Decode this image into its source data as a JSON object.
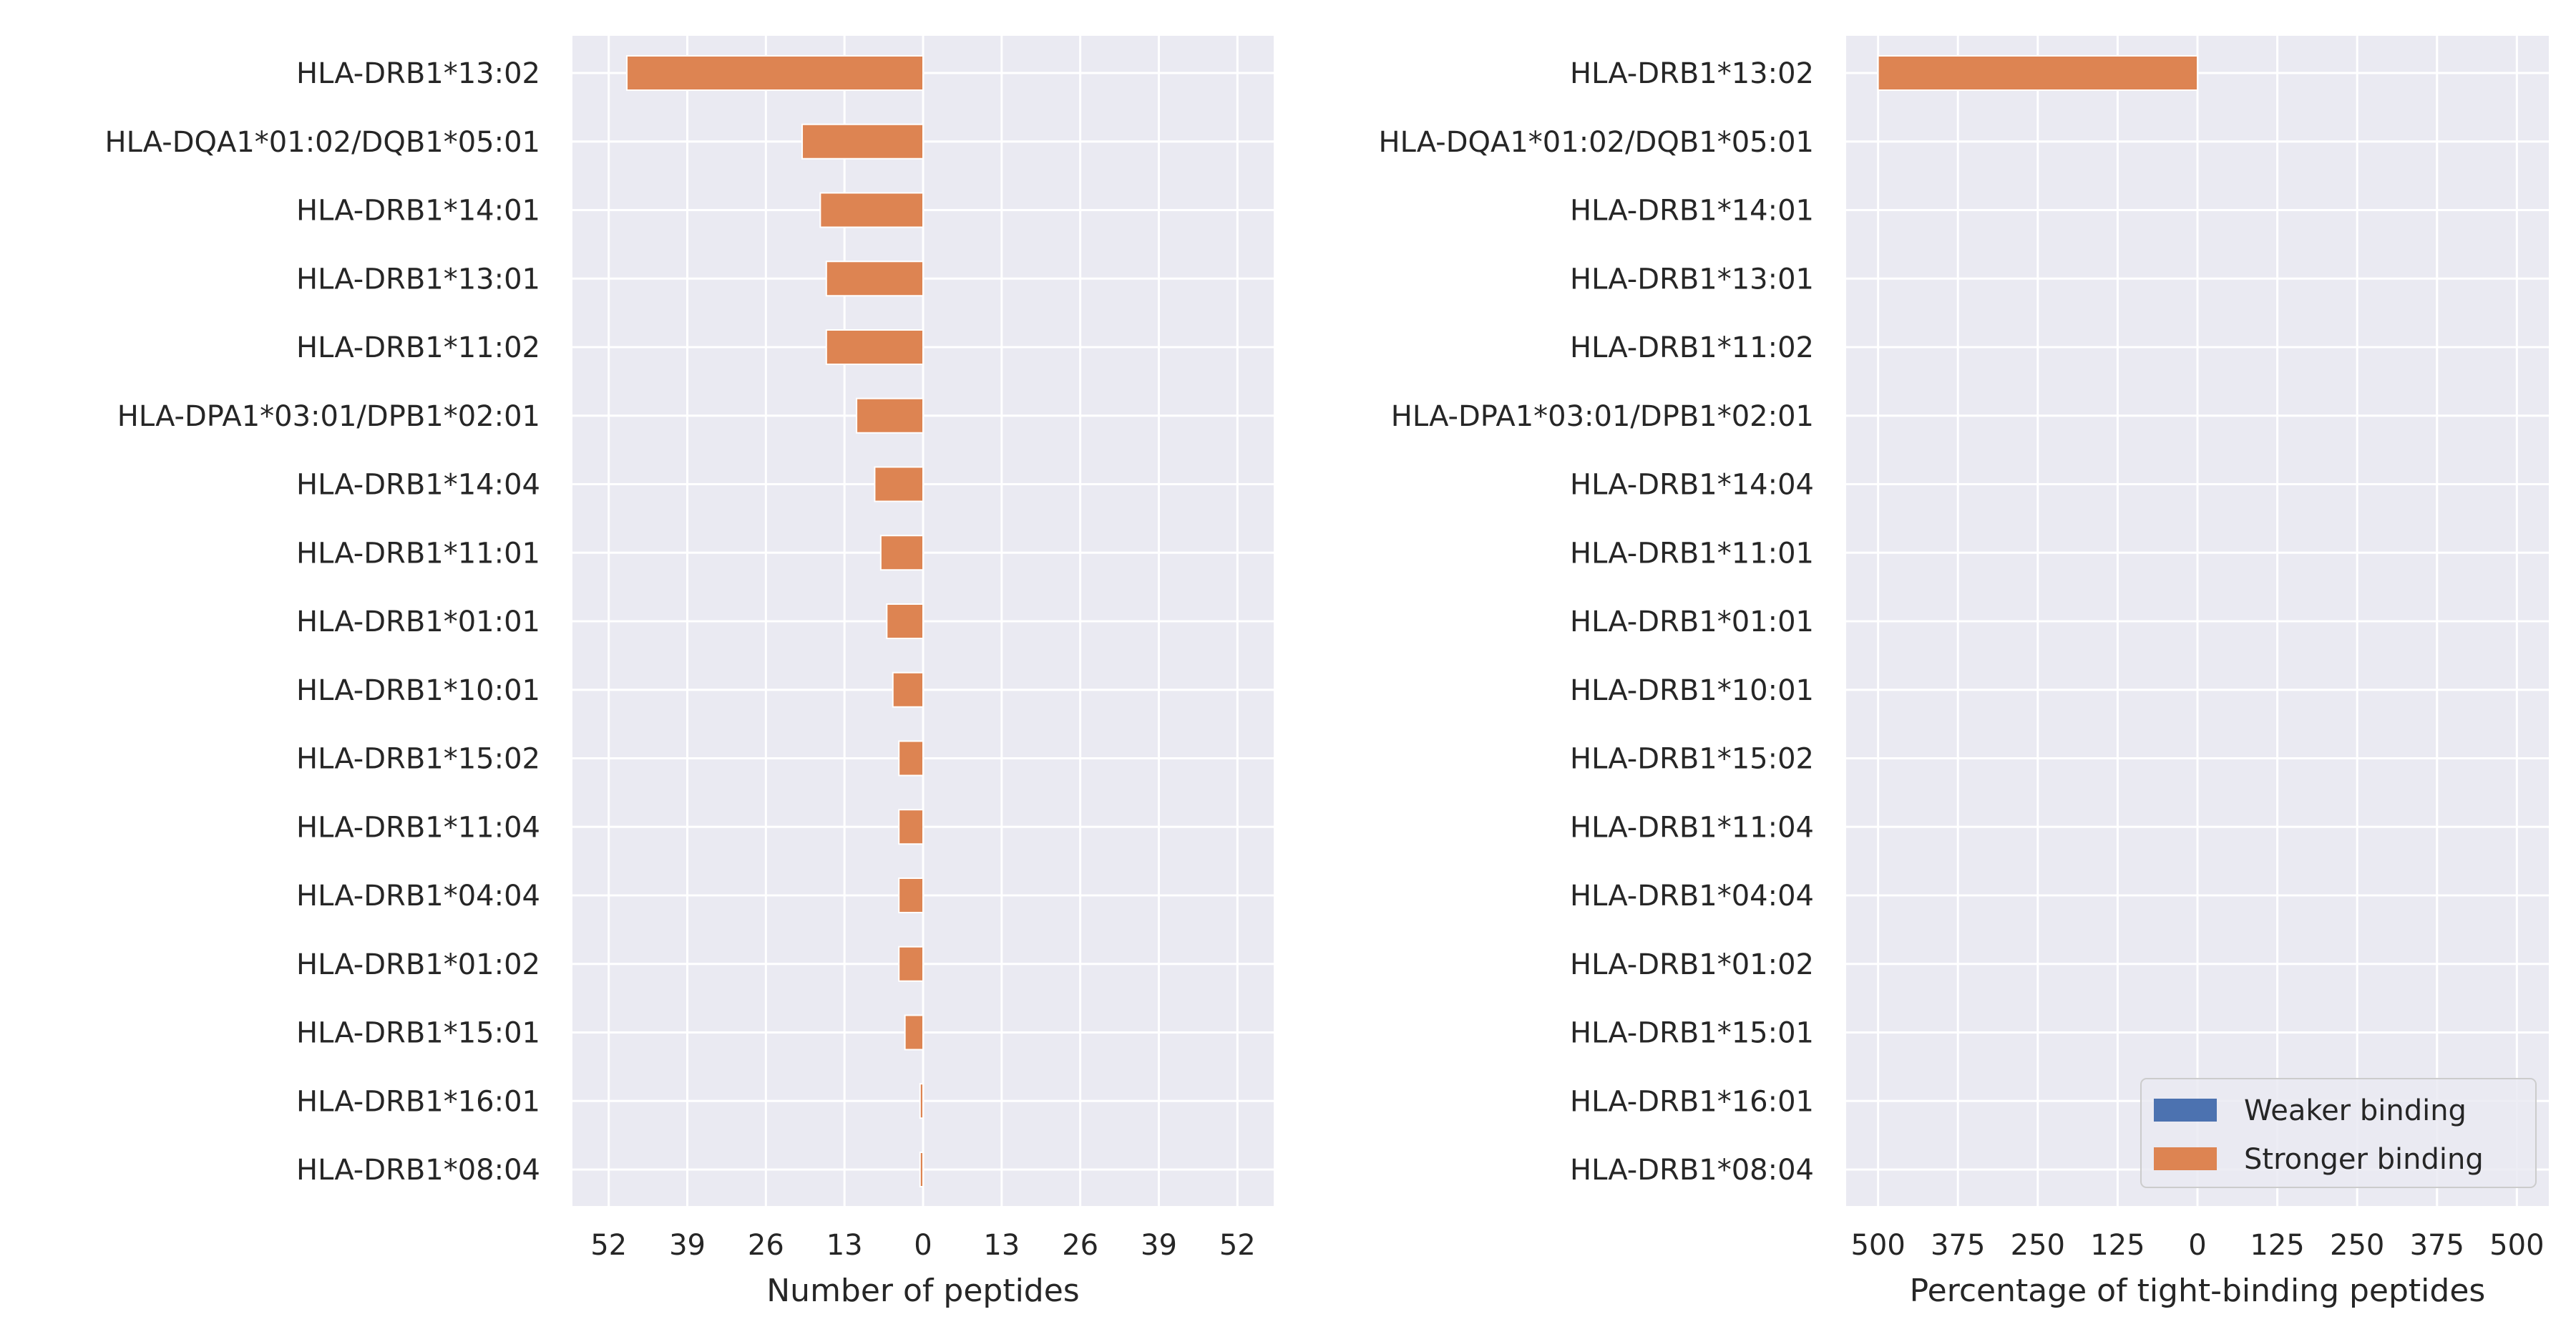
{
  "colors": {
    "panel_bg": "#EAEAF2",
    "grid": "#FFFFFF",
    "weaker": "#4C72B0",
    "stronger": "#DD8452",
    "text": "#262626"
  },
  "chart_data": [
    {
      "type": "bar",
      "orientation": "horizontal",
      "xlabel": "Number of peptides",
      "xlim": [
        -58,
        58
      ],
      "xticks": [
        -52,
        -39,
        -26,
        -13,
        0,
        13,
        26,
        39,
        52
      ],
      "xtick_labels": [
        "52",
        "39",
        "26",
        "13",
        "0",
        "13",
        "26",
        "39",
        "52"
      ],
      "grid": true,
      "categories": [
        "HLA-DRB1*13:02",
        "HLA-DQA1*01:02/DQB1*05:01",
        "HLA-DRB1*14:01",
        "HLA-DRB1*13:01",
        "HLA-DRB1*11:02",
        "HLA-DPA1*03:01/DPB1*02:01",
        "HLA-DRB1*14:04",
        "HLA-DRB1*11:01",
        "HLA-DRB1*01:01",
        "HLA-DRB1*10:01",
        "HLA-DRB1*15:02",
        "HLA-DRB1*11:04",
        "HLA-DRB1*04:04",
        "HLA-DRB1*01:02",
        "HLA-DRB1*15:01",
        "HLA-DRB1*16:01",
        "HLA-DRB1*08:04"
      ],
      "series": [
        {
          "name": "Weaker binding",
          "color": "#4C72B0",
          "values": [
            0,
            0,
            0,
            0,
            0,
            0,
            0,
            0,
            0,
            0,
            0,
            0,
            0,
            0,
            0,
            0,
            0
          ]
        },
        {
          "name": "Stronger binding",
          "color": "#DD8452",
          "values": [
            -49,
            -20,
            -17,
            -16,
            -16,
            -11,
            -8,
            -7,
            -6,
            -5,
            -4,
            -4,
            -4,
            -4,
            -3,
            -0.5,
            -0.5
          ]
        }
      ]
    },
    {
      "type": "bar",
      "orientation": "horizontal",
      "xlabel": "Percentage of tight-binding peptides",
      "xlim": [
        -550,
        550
      ],
      "xticks": [
        -500,
        -375,
        -250,
        -125,
        0,
        125,
        250,
        375,
        500
      ],
      "xtick_labels": [
        "500",
        "375",
        "250",
        "125",
        "0",
        "125",
        "250",
        "375",
        "500"
      ],
      "grid": true,
      "legend": "lower-right",
      "categories": [
        "HLA-DRB1*13:02",
        "HLA-DQA1*01:02/DQB1*05:01",
        "HLA-DRB1*14:01",
        "HLA-DRB1*13:01",
        "HLA-DRB1*11:02",
        "HLA-DPA1*03:01/DPB1*02:01",
        "HLA-DRB1*14:04",
        "HLA-DRB1*11:01",
        "HLA-DRB1*01:01",
        "HLA-DRB1*10:01",
        "HLA-DRB1*15:02",
        "HLA-DRB1*11:04",
        "HLA-DRB1*04:04",
        "HLA-DRB1*01:02",
        "HLA-DRB1*15:01",
        "HLA-DRB1*16:01",
        "HLA-DRB1*08:04"
      ],
      "series": [
        {
          "name": "Weaker binding",
          "color": "#4C72B0",
          "values": [
            0,
            0,
            0,
            0,
            0,
            0,
            0,
            0,
            0,
            0,
            0,
            0,
            0,
            0,
            0,
            0,
            0
          ]
        },
        {
          "name": "Stronger binding",
          "color": "#DD8452",
          "values": [
            -500,
            0,
            0,
            0,
            0,
            0,
            0,
            0,
            0,
            0,
            0,
            0,
            0,
            0,
            0,
            0,
            0
          ]
        }
      ]
    }
  ]
}
